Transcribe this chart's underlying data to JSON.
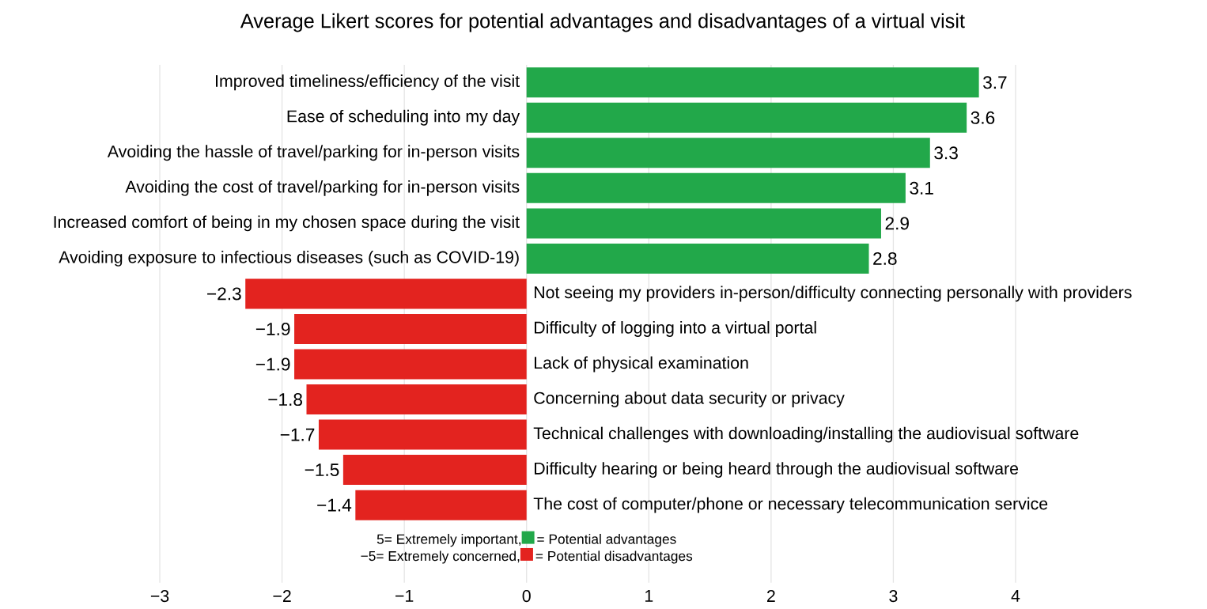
{
  "chart_data": {
    "type": "bar",
    "orientation": "horizontal",
    "title": "Average Likert scores for potential advantages and disadvantages of a virtual visit",
    "categories": [
      "Improved timeliness/efficiency of the visit",
      "Ease of scheduling into my day",
      "Avoiding the hassle of travel/parking for in-person visits",
      "Avoiding the cost of travel/parking for in-person visits",
      "Increased comfort of being in my chosen space during the visit",
      "Avoiding exposure to infectious diseases (such as COVID-19)",
      "Not seeing my providers in-person/difficulty connecting personally with providers",
      "Difficulty of logging into a virtual portal",
      "Lack of physical examination",
      "Concerning about data security or privacy",
      "Technical challenges with downloading/installing the audiovisual software",
      "Difficulty hearing or being heard through the audiovisual software",
      "The cost of computer/phone or necessary telecommunication service"
    ],
    "series": [
      {
        "name": "= Potential advantages",
        "color": "#22a84a",
        "values": [
          3.7,
          3.6,
          3.3,
          3.1,
          2.9,
          2.8,
          null,
          null,
          null,
          null,
          null,
          null,
          null
        ],
        "value_labels": [
          "3.7",
          "3.6",
          "3.3",
          "3.1",
          "2.9",
          "2.8",
          null,
          null,
          null,
          null,
          null,
          null,
          null
        ]
      },
      {
        "name": "= Potential disadvantages",
        "color": "#e3231f",
        "values": [
          null,
          null,
          null,
          null,
          null,
          null,
          -2.3,
          -1.9,
          -1.9,
          -1.8,
          -1.7,
          -1.5,
          -1.4
        ],
        "value_labels": [
          null,
          null,
          null,
          null,
          null,
          null,
          "−2.3",
          "−1.9",
          "−1.9",
          "−1.8",
          "−1.7",
          "−1.5",
          "−1.4"
        ]
      }
    ],
    "annotations": [
      "5= Extremely important,",
      "−5= Extremely concerned,"
    ],
    "xlim": [
      -3,
      4
    ],
    "xticks": [
      {
        "value": -3,
        "label": "−3"
      },
      {
        "value": -2,
        "label": "−2"
      },
      {
        "value": -1,
        "label": "−1"
      },
      0,
      1,
      2,
      3,
      4
    ],
    "grid": "x",
    "legend": "bottom"
  }
}
